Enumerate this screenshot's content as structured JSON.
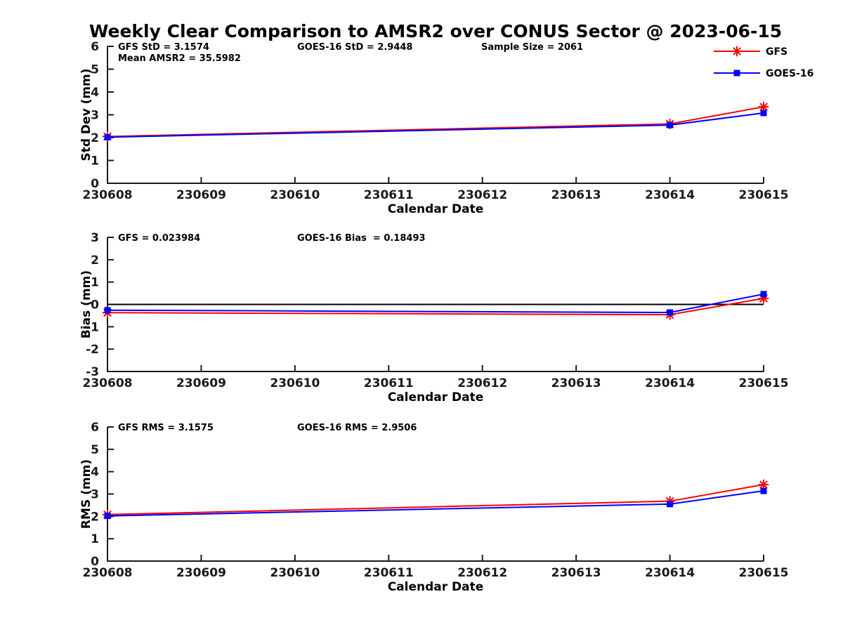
{
  "title": "Weekly Clear Comparison to AMSR2 over CONUS Sector @ 2023-06-15",
  "colors": {
    "gfs": "#ff0000",
    "goes16": "#0000ff",
    "axis": "#1a1a1a",
    "zero_line": "#000000",
    "background": "#ffffff"
  },
  "legend": {
    "position": "top-right",
    "entries": [
      {
        "label": "GFS",
        "color": "#ff0000",
        "marker": "asterisk"
      },
      {
        "label": "GOES-16",
        "color": "#0000ff",
        "marker": "square"
      }
    ]
  },
  "x_axis": {
    "label": "Calendar Date",
    "ticks": [
      "230608",
      "230609",
      "230610",
      "230611",
      "230612",
      "230613",
      "230614",
      "230615"
    ]
  },
  "chart_data": [
    {
      "type": "line",
      "ylabel": "Std Dev (mm)",
      "xlabel": "Calendar Date",
      "ylim": [
        0,
        6
      ],
      "yticks": [
        0,
        1,
        2,
        3,
        4,
        5,
        6
      ],
      "grid": false,
      "zero_line": false,
      "x": [
        "230608",
        "230614",
        "230615"
      ],
      "series": [
        {
          "name": "GFS",
          "color": "#ff0000",
          "marker": "asterisk",
          "values": [
            2.05,
            2.6,
            3.35
          ]
        },
        {
          "name": "GOES-16",
          "color": "#0000ff",
          "marker": "square",
          "values": [
            2.02,
            2.55,
            3.08
          ]
        }
      ],
      "annotations": [
        {
          "text": "GFS StD = 3.1574",
          "col": 0,
          "row": 0
        },
        {
          "text": "Mean AMSR2 = 35.5982",
          "col": 0,
          "row": 1
        },
        {
          "text": "GOES-16 StD = 2.9448",
          "col": 1,
          "row": 0
        },
        {
          "text": "Sample Size = 2061",
          "col": 2,
          "row": 0
        }
      ]
    },
    {
      "type": "line",
      "ylabel": "Bias (mm)",
      "xlabel": "Calendar Date",
      "ylim": [
        -3,
        3
      ],
      "yticks": [
        -3,
        -2,
        -1,
        0,
        1,
        2,
        3
      ],
      "grid": false,
      "zero_line": true,
      "x": [
        "230608",
        "230614",
        "230615"
      ],
      "series": [
        {
          "name": "GFS",
          "color": "#ff0000",
          "marker": "asterisk",
          "values": [
            -0.37,
            -0.46,
            0.27
          ]
        },
        {
          "name": "GOES-16",
          "color": "#0000ff",
          "marker": "square",
          "values": [
            -0.26,
            -0.36,
            0.46
          ]
        }
      ],
      "annotations": [
        {
          "text": "GFS = 0.023984",
          "col": 0,
          "row": 0
        },
        {
          "text": "GOES-16 Bias  = 0.18493",
          "col": 1,
          "row": 0
        }
      ]
    },
    {
      "type": "line",
      "ylabel": "RMS (mm)",
      "xlabel": "Calendar Date",
      "ylim": [
        0,
        6
      ],
      "yticks": [
        0,
        1,
        2,
        3,
        4,
        5,
        6
      ],
      "grid": false,
      "zero_line": false,
      "x": [
        "230608",
        "230614",
        "230615"
      ],
      "series": [
        {
          "name": "GFS",
          "color": "#ff0000",
          "marker": "asterisk",
          "values": [
            2.08,
            2.68,
            3.42
          ]
        },
        {
          "name": "GOES-16",
          "color": "#0000ff",
          "marker": "square",
          "values": [
            2.02,
            2.55,
            3.14
          ]
        }
      ],
      "annotations": [
        {
          "text": "GFS RMS = 3.1575",
          "col": 0,
          "row": 0
        },
        {
          "text": "GOES-16 RMS = 2.9506",
          "col": 1,
          "row": 0
        }
      ]
    }
  ]
}
